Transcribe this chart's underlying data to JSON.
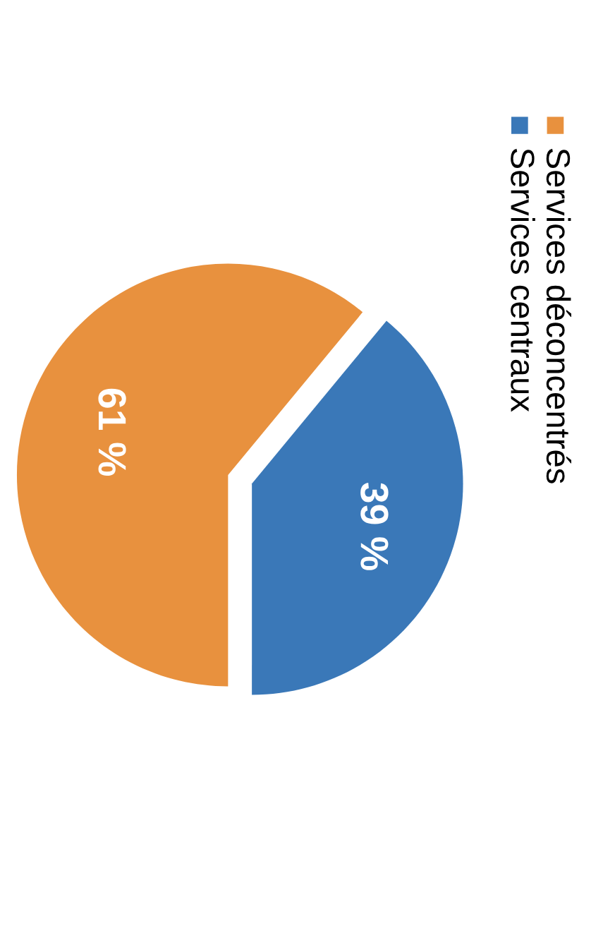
{
  "chart_data": {
    "type": "pie",
    "categories": [
      "Services centraux",
      "Services déconcentrés"
    ],
    "values": [
      39,
      61
    ],
    "colors": [
      "#3a78b8",
      "#e8913e"
    ],
    "value_labels": [
      "39 %",
      "61 %"
    ],
    "legend": "right"
  }
}
